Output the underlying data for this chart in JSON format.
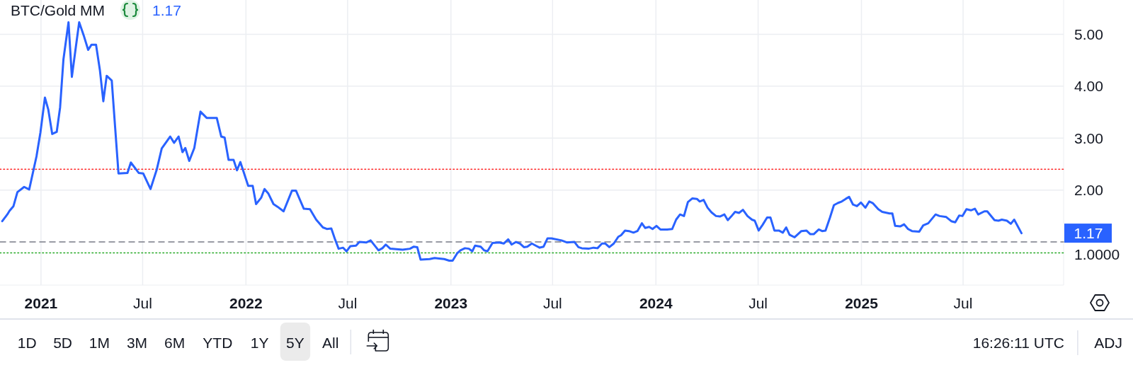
{
  "chart_data": {
    "type": "line",
    "title": "BTC/Gold MM",
    "color": "#2962ff",
    "x": [
      "2020-10-24",
      "2020-11-02",
      "2020-11-06",
      "2020-11-13",
      "2020-11-20",
      "2020-12-02",
      "2020-12-11",
      "2020-12-24",
      "2020-12-31",
      "2021-01-08",
      "2021-01-14",
      "2021-01-21",
      "2021-01-29",
      "2021-02-04",
      "2021-02-10",
      "2021-02-19",
      "2021-02-25",
      "2021-03-04",
      "2021-03-10",
      "2021-03-18",
      "2021-03-26",
      "2021-04-01",
      "2021-04-09",
      "2021-04-16",
      "2021-04-22",
      "2021-04-28",
      "2021-05-07",
      "2021-05-13",
      "2021-05-19",
      "2021-06-04",
      "2021-06-10",
      "2021-06-24",
      "2021-07-02",
      "2021-07-15",
      "2021-07-26",
      "2021-08-04",
      "2021-08-19",
      "2021-08-26",
      "2021-09-03",
      "2021-09-10",
      "2021-09-15",
      "2021-09-22",
      "2021-10-01",
      "2021-10-12",
      "2021-10-23",
      "2021-11-10",
      "2021-11-18",
      "2021-11-24",
      "2021-12-01",
      "2021-12-10",
      "2021-12-16",
      "2021-12-22",
      "2022-01-05",
      "2022-01-13",
      "2022-01-19",
      "2022-01-28",
      "2022-02-03",
      "2022-02-10",
      "2022-02-19",
      "2022-02-26",
      "2022-03-09",
      "2022-03-24",
      "2022-03-31",
      "2022-04-14",
      "2022-04-25",
      "2022-05-06",
      "2022-05-18",
      "2022-05-25",
      "2022-06-02",
      "2022-06-08",
      "2022-06-15",
      "2022-06-23",
      "2022-06-29",
      "2022-07-06",
      "2022-07-16",
      "2022-07-22",
      "2022-08-03",
      "2022-08-11",
      "2022-08-25",
      "2022-09-01",
      "2022-09-07",
      "2022-09-15",
      "2022-10-07",
      "2022-10-20",
      "2022-10-27",
      "2022-11-02",
      "2022-11-08",
      "2022-11-24",
      "2022-12-03",
      "2022-12-11",
      "2022-12-20",
      "2022-12-29",
      "2023-01-04",
      "2023-01-12",
      "2023-01-18",
      "2023-01-26",
      "2023-02-02",
      "2023-02-08",
      "2023-02-13",
      "2023-02-23",
      "2023-03-01",
      "2023-03-07",
      "2023-03-16",
      "2023-03-28",
      "2023-04-05",
      "2023-04-13",
      "2023-04-19",
      "2023-04-27",
      "2023-05-04",
      "2023-05-11",
      "2023-05-17",
      "2023-05-25",
      "2023-06-01",
      "2023-06-08",
      "2023-06-15",
      "2023-06-22",
      "2023-06-29",
      "2023-07-17",
      "2023-07-27",
      "2023-08-09",
      "2023-08-16",
      "2023-08-22",
      "2023-09-03",
      "2023-09-12",
      "2023-09-19",
      "2023-09-27",
      "2023-10-03",
      "2023-10-10",
      "2023-10-18",
      "2023-10-26",
      "2023-10-31",
      "2023-11-07",
      "2023-11-14",
      "2023-11-22",
      "2023-11-29",
      "2023-12-07",
      "2023-12-13",
      "2023-12-20",
      "2023-12-26",
      "2024-01-02",
      "2024-01-09",
      "2024-01-21",
      "2024-01-30",
      "2024-02-06",
      "2024-02-13",
      "2024-02-20",
      "2024-02-27",
      "2024-03-06",
      "2024-03-14",
      "2024-03-19",
      "2024-03-26",
      "2024-04-02",
      "2024-04-09",
      "2024-04-17",
      "2024-04-24",
      "2024-05-02",
      "2024-05-08",
      "2024-05-14",
      "2024-05-21",
      "2024-05-28",
      "2024-06-04",
      "2024-06-12",
      "2024-06-20",
      "2024-06-25",
      "2024-07-02",
      "2024-07-09",
      "2024-07-17",
      "2024-07-23",
      "2024-07-30",
      "2024-08-07",
      "2024-08-14",
      "2024-08-20",
      "2024-08-26",
      "2024-09-04",
      "2024-09-16",
      "2024-09-25",
      "2024-10-02",
      "2024-10-08",
      "2024-10-17",
      "2024-10-23",
      "2024-10-29",
      "2024-11-06",
      "2024-11-13",
      "2024-11-20",
      "2024-11-27",
      "2024-12-04",
      "2024-12-10",
      "2024-12-17",
      "2024-12-24",
      "2024-12-31",
      "2025-01-08",
      "2025-01-15",
      "2025-01-21",
      "2025-01-31",
      "2025-02-07",
      "2025-02-20",
      "2025-02-25",
      "2025-03-02",
      "2025-03-11",
      "2025-03-18",
      "2025-03-25",
      "2025-04-01",
      "2025-04-14",
      "2025-04-21",
      "2025-04-30",
      "2025-05-13",
      "2025-05-20",
      "2025-06-01",
      "2025-06-10",
      "2025-06-17",
      "2025-06-24",
      "2025-06-30",
      "2025-07-07",
      "2025-07-15",
      "2025-07-22",
      "2025-07-28",
      "2025-08-08",
      "2025-08-13",
      "2025-08-26",
      "2025-09-02",
      "2025-09-08",
      "2025-09-17",
      "2025-09-24",
      "2025-09-30",
      "2025-10-13"
    ],
    "values": [
      1.4,
      1.53,
      1.6,
      1.69,
      1.96,
      2.06,
      2.01,
      2.65,
      3.11,
      3.78,
      3.55,
      3.08,
      3.12,
      3.59,
      4.52,
      5.23,
      4.18,
      4.75,
      5.23,
      4.98,
      4.7,
      4.8,
      4.8,
      4.3,
      3.71,
      4.2,
      4.11,
      3.21,
      2.32,
      2.33,
      2.53,
      2.33,
      2.32,
      2.02,
      2.39,
      2.8,
      3.03,
      2.91,
      3.03,
      2.73,
      2.81,
      2.56,
      2.81,
      3.51,
      3.39,
      3.39,
      3.03,
      3.01,
      2.58,
      2.58,
      2.38,
      2.54,
      2.08,
      2.08,
      1.73,
      1.85,
      2.02,
      1.93,
      1.73,
      1.68,
      1.59,
      1.99,
      1.99,
      1.64,
      1.63,
      1.43,
      1.28,
      1.25,
      1.26,
      1.07,
      0.87,
      0.89,
      0.82,
      0.92,
      0.93,
      1.0,
      0.99,
      1.03,
      0.84,
      0.88,
      0.95,
      0.87,
      0.85,
      0.87,
      0.91,
      0.9,
      0.66,
      0.67,
      0.69,
      0.68,
      0.67,
      0.64,
      0.64,
      0.78,
      0.84,
      0.88,
      0.87,
      0.82,
      0.93,
      0.91,
      0.84,
      0.82,
      0.98,
      0.99,
      0.97,
      1.05,
      0.95,
      1.0,
      0.97,
      0.9,
      0.91,
      0.97,
      0.93,
      0.89,
      0.91,
      1.07,
      1.07,
      1.03,
      0.99,
      1.0,
      0.9,
      0.88,
      0.87,
      0.89,
      0.88,
      0.97,
      0.97,
      0.9,
      0.97,
      1.1,
      1.13,
      1.22,
      1.21,
      1.18,
      1.21,
      1.36,
      1.27,
      1.29,
      1.25,
      1.31,
      1.24,
      1.24,
      1.25,
      1.43,
      1.53,
      1.5,
      1.77,
      1.84,
      1.83,
      1.78,
      1.81,
      1.66,
      1.57,
      1.5,
      1.49,
      1.53,
      1.42,
      1.49,
      1.58,
      1.56,
      1.62,
      1.5,
      1.43,
      1.41,
      1.22,
      1.33,
      1.47,
      1.47,
      1.22,
      1.22,
      1.18,
      1.28,
      1.14,
      1.09,
      1.21,
      1.22,
      1.15,
      1.15,
      1.24,
      1.21,
      1.22,
      1.47,
      1.71,
      1.75,
      1.78,
      1.83,
      1.87,
      1.72,
      1.69,
      1.76,
      1.66,
      1.78,
      1.75,
      1.63,
      1.58,
      1.55,
      1.55,
      1.31,
      1.3,
      1.34,
      1.25,
      1.21,
      1.2,
      1.32,
      1.36,
      1.53,
      1.5,
      1.48,
      1.4,
      1.38,
      1.51,
      1.5,
      1.63,
      1.61,
      1.64,
      1.53,
      1.59,
      1.59,
      1.42,
      1.41,
      1.43,
      1.41,
      1.35,
      1.43,
      1.17
    ],
    "xlim": [
      "2020-10-20",
      "2025-12-27"
    ],
    "xticks": [
      {
        "value": "2021-01-01",
        "label": "2021"
      },
      {
        "value": "2021-07-01",
        "label": "Jul"
      },
      {
        "value": "2022-01-01",
        "label": "2022"
      },
      {
        "value": "2022-07-01",
        "label": "Jul"
      },
      {
        "value": "2023-01-01",
        "label": "2023"
      },
      {
        "value": "2023-07-01",
        "label": "Jul"
      },
      {
        "value": "2024-01-01",
        "label": "2024"
      },
      {
        "value": "2024-07-01",
        "label": "Jul"
      },
      {
        "value": "2025-01-01",
        "label": "2025"
      },
      {
        "value": "2025-07-01",
        "label": "Jul"
      }
    ],
    "ylim": [
      0.17,
      5.66
    ],
    "yticks": [
      {
        "value": 2,
        "label": "2.00"
      },
      {
        "value": 3,
        "label": "3.00"
      },
      {
        "value": 4,
        "label": "4.00"
      },
      {
        "value": 5,
        "label": "5.00"
      }
    ],
    "grid": true,
    "ref_lines": [
      {
        "axis": "y",
        "value": 2.4,
        "color": "#ff2020",
        "line_style": "dotted"
      },
      {
        "axis": "y",
        "value": 1.0,
        "label": "1.0000",
        "color": "#787b86",
        "line_style": "dashed"
      },
      {
        "axis": "y",
        "value": 0.79,
        "color": "#1ea61e",
        "line_style": "dotted"
      }
    ],
    "annotations": [
      "1.17",
      "1.17",
      "1D",
      "5D",
      "1M",
      "3M",
      "6M",
      "YTD",
      "1Y",
      "5Y",
      "All",
      "16:26:11 UTC",
      "ADJ"
    ]
  }
}
